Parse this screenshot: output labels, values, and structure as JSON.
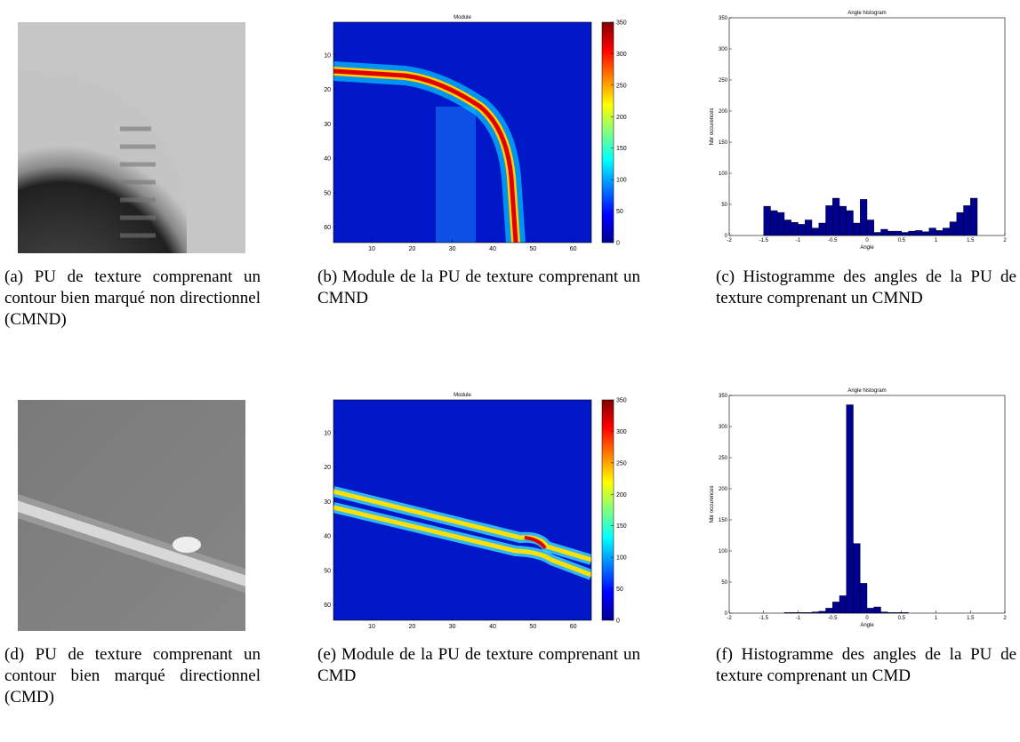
{
  "panels": [
    {
      "caption": "(a) PU de texture comprenant un contour bien marqué non directionnel (CMND)"
    },
    {
      "caption": "(b) Module de la PU de texture comprenant un CMND"
    },
    {
      "caption": "(c) Histogramme des angles de la PU de texture comprenant un CMND"
    },
    {
      "caption": "(d) PU de texture comprenant un contour bien marqué directionnel (CMD)"
    },
    {
      "caption": "(e) Module de la PU de texture comprenant un CMD"
    },
    {
      "caption": "(f) Histogramme des angles de la PU de texture comprenant un CMD"
    }
  ],
  "chart_data": [
    {
      "type": "heatmap",
      "title": "Module",
      "xlim": [
        0.5,
        64.5
      ],
      "ylim": [
        0.5,
        64.5
      ],
      "y_inverted": true,
      "xticks": [
        10,
        20,
        30,
        40,
        50,
        60
      ],
      "yticks": [
        10,
        20,
        30,
        40,
        50,
        60
      ],
      "clim": [
        0,
        350
      ],
      "cticks": [
        0,
        50,
        100,
        150,
        200,
        250,
        300,
        350
      ]
    },
    {
      "type": "histogram",
      "title": "Angle histogram",
      "x_label": "Angle",
      "y_label": "Nbr occurences",
      "color": "#00008f",
      "bins": [
        -1.6,
        -1.5,
        -1.4,
        -1.3,
        -1.2,
        -1.1,
        -1.0,
        -0.9,
        -0.8,
        -0.7,
        -0.6,
        -0.5,
        -0.4,
        -0.3,
        -0.2,
        -0.1,
        0,
        0.1,
        0.2,
        0.3,
        0.4,
        0.5,
        0.6,
        0.7,
        0.8,
        0.9,
        1.0,
        1.1,
        1.2,
        1.3,
        1.4,
        1.5,
        1.6
      ],
      "counts": [
        0,
        47,
        40,
        37,
        25,
        21,
        18,
        25,
        12,
        20,
        48,
        60,
        47,
        40,
        20,
        58,
        25,
        5,
        10,
        7,
        7,
        5,
        7,
        8,
        6,
        12,
        8,
        12,
        22,
        37,
        48,
        60
      ],
      "xlim": [
        -2,
        2
      ],
      "ylim": [
        0,
        350
      ],
      "xticks": [
        -2,
        -1.5,
        -1,
        -0.5,
        0,
        0.5,
        1,
        1.5,
        2
      ],
      "yticks": [
        0,
        50,
        100,
        150,
        200,
        250,
        300,
        350
      ]
    },
    {
      "type": "heatmap",
      "title": "Module",
      "xlim": [
        0.5,
        64.5
      ],
      "ylim": [
        0.5,
        64.5
      ],
      "y_inverted": true,
      "xticks": [
        10,
        20,
        30,
        40,
        50,
        60
      ],
      "yticks": [
        10,
        20,
        30,
        40,
        50,
        60
      ],
      "clim": [
        0,
        350
      ],
      "cticks": [
        0,
        50,
        100,
        150,
        200,
        250,
        300,
        350
      ]
    },
    {
      "type": "histogram",
      "title": "Angle histogram",
      "x_label": "Angle",
      "y_label": "Nbr occurences",
      "color": "#00008f",
      "bins": [
        -1.6,
        -1.5,
        -1.4,
        -1.3,
        -1.2,
        -1.1,
        -1.0,
        -0.9,
        -0.8,
        -0.7,
        -0.6,
        -0.5,
        -0.4,
        -0.3,
        -0.2,
        -0.1,
        0,
        0.1,
        0.2,
        0.3,
        0.4,
        0.5,
        0.6,
        0.7,
        0.8,
        0.9,
        1.0,
        1.1,
        1.2,
        1.3,
        1.4,
        1.5,
        1.6
      ],
      "counts": [
        0,
        0,
        0,
        0,
        1,
        1,
        1,
        1,
        2,
        3,
        8,
        18,
        28,
        335,
        112,
        48,
        8,
        10,
        2,
        1,
        1,
        1,
        0,
        0,
        0,
        0,
        0,
        0,
        0,
        0,
        0,
        0
      ],
      "xlim": [
        -2,
        2
      ],
      "ylim": [
        0,
        350
      ],
      "xticks": [
        -2,
        -1.5,
        -1,
        -0.5,
        0,
        0.5,
        1,
        1.5,
        2
      ],
      "yticks": [
        0,
        50,
        100,
        150,
        200,
        250,
        300,
        350
      ]
    }
  ]
}
